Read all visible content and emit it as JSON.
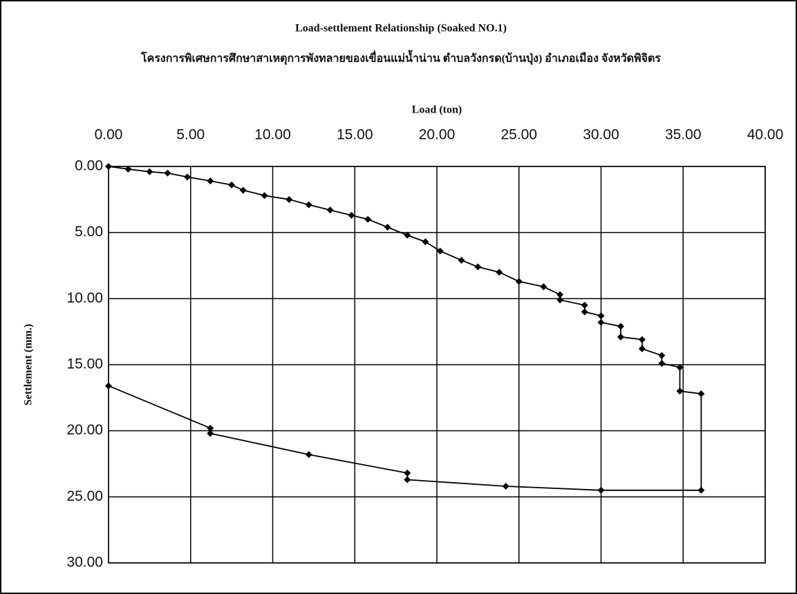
{
  "chart_data": {
    "type": "line",
    "title": "Load-settlement Relationship   (Soaked  NO.1)",
    "subtitle": "โครงการพิเศษการศึกษาสาเหตุการพังทลายของเขื่อนแม่น้ำน่าน ตำบลวังกรด(บ้านปุ่ง) อำเภอเมือง จังหวัดพิจิตร",
    "x_label": "Load (ton)",
    "y_label": "Settlement (mm.)",
    "xlim": [
      0,
      40
    ],
    "xticks": [
      {
        "value": 0,
        "label": "0.00"
      },
      {
        "value": 5,
        "label": "5.00"
      },
      {
        "value": 10,
        "label": "10.00"
      },
      {
        "value": 15,
        "label": "15.00"
      },
      {
        "value": 20,
        "label": "20.00"
      },
      {
        "value": 25,
        "label": "25.00"
      },
      {
        "value": 30,
        "label": "30.00"
      },
      {
        "value": 35,
        "label": "35.00"
      },
      {
        "value": 40,
        "label": "40.00"
      }
    ],
    "ylim": [
      0,
      30
    ],
    "yticks": [
      {
        "value": 0,
        "label": "0.00"
      },
      {
        "value": 5,
        "label": "5.00"
      },
      {
        "value": 10,
        "label": "10.00"
      },
      {
        "value": 15,
        "label": "15.00"
      },
      {
        "value": 20,
        "label": "20.00"
      },
      {
        "value": 25,
        "label": "25.00"
      },
      {
        "value": 30,
        "label": "30.00"
      }
    ],
    "y_inverted": true,
    "x_axis_position": "top",
    "grid": true,
    "series": [
      {
        "color": "#000000",
        "x": [
          0,
          1.2,
          2.5,
          3.6,
          4.8,
          6.2,
          7.5,
          8.2,
          9.5,
          11,
          12.2,
          13.5,
          14.8,
          15.8,
          17,
          18.2,
          19.3,
          20.2,
          21.5,
          22.5,
          23.8,
          25,
          26.5,
          27.5,
          27.5,
          29,
          29,
          30,
          30,
          31.2,
          31.2,
          32.5,
          32.5,
          33.7,
          33.7,
          34.8,
          34.8,
          36.1,
          36.1,
          30,
          24.2,
          18.2,
          18.2,
          12.2,
          6.2,
          6.2,
          0
        ],
        "values": [
          0,
          0.2,
          0.4,
          0.5,
          0.8,
          1.1,
          1.4,
          1.8,
          2.2,
          2.5,
          2.9,
          3.3,
          3.7,
          4.0,
          4.6,
          5.2,
          5.7,
          6.4,
          7.1,
          7.6,
          8.0,
          8.7,
          9.1,
          9.7,
          10.1,
          10.5,
          11.0,
          11.3,
          11.8,
          12.1,
          12.9,
          13.1,
          13.8,
          14.3,
          14.9,
          15.2,
          17.0,
          17.2,
          24.5,
          24.5,
          24.2,
          23.7,
          23.2,
          21.8,
          20.2,
          19.8,
          16.6
        ]
      }
    ]
  }
}
